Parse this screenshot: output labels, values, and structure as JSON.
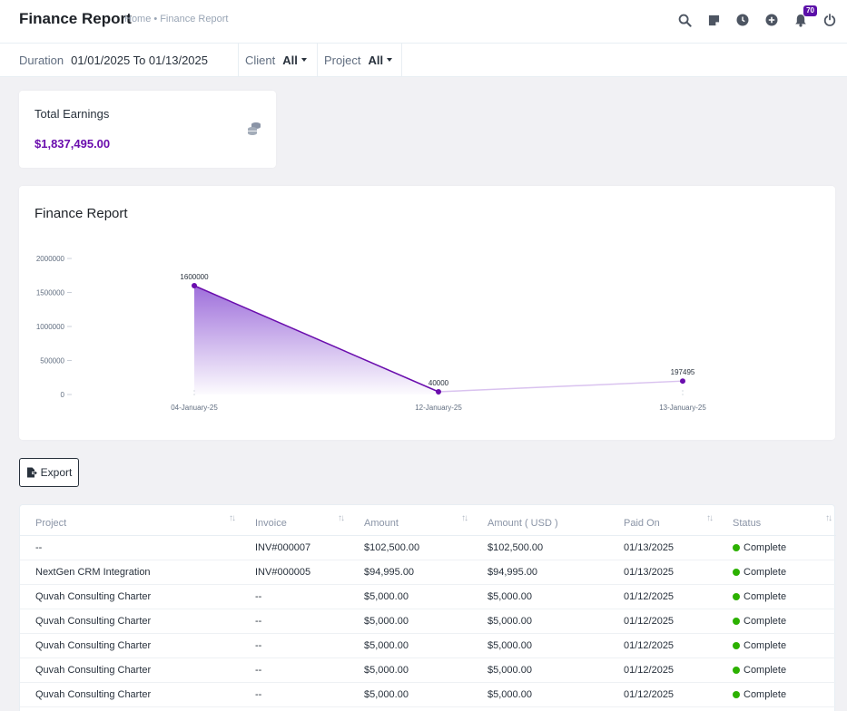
{
  "header": {
    "title": "Finance Report",
    "breadcrumb": {
      "home": "Home",
      "current": "Finance Report"
    },
    "notification_count": "70",
    "icons": [
      "search-icon",
      "sticky-note-icon",
      "clock-icon",
      "plus-circle-icon",
      "bell-icon",
      "power-icon"
    ]
  },
  "filters": {
    "duration_label": "Duration",
    "duration_value": "01/01/2025 To 01/13/2025",
    "client_label": "Client",
    "client_value": "All",
    "project_label": "Project",
    "project_value": "All"
  },
  "earnings": {
    "title": "Total Earnings",
    "value": "$1,837,495.00"
  },
  "chart_card": {
    "title": "Finance Report"
  },
  "chart_data": {
    "type": "area",
    "title": "Finance Report",
    "categories": [
      "04-January-25",
      "12-January-25",
      "13-January-25"
    ],
    "values": [
      1600000,
      40000,
      197495
    ],
    "data_labels": [
      "1600000",
      "40000",
      "197495"
    ],
    "ylim": [
      0,
      2000000
    ],
    "yticks": [
      0,
      500000,
      1000000,
      1500000,
      2000000
    ],
    "ytick_labels": [
      "0",
      "500000",
      "1000000",
      "1500000",
      "2000000"
    ],
    "xlabel": "",
    "ylabel": "",
    "color": "#6a0dad"
  },
  "export_label": "Export",
  "table": {
    "columns": [
      "Project",
      "Invoice",
      "Amount",
      "Amount ( USD )",
      "Paid On",
      "Status"
    ],
    "rows": [
      [
        "--",
        "INV#000007",
        "$102,500.00",
        "$102,500.00",
        "01/13/2025",
        "Complete"
      ],
      [
        "NextGen CRM Integration",
        "INV#000005",
        "$94,995.00",
        "$94,995.00",
        "01/13/2025",
        "Complete"
      ],
      [
        "Quvah Consulting Charter",
        "--",
        "$5,000.00",
        "$5,000.00",
        "01/12/2025",
        "Complete"
      ],
      [
        "Quvah Consulting Charter",
        "--",
        "$5,000.00",
        "$5,000.00",
        "01/12/2025",
        "Complete"
      ],
      [
        "Quvah Consulting Charter",
        "--",
        "$5,000.00",
        "$5,000.00",
        "01/12/2025",
        "Complete"
      ],
      [
        "Quvah Consulting Charter",
        "--",
        "$5,000.00",
        "$5,000.00",
        "01/12/2025",
        "Complete"
      ],
      [
        "Quvah Consulting Charter",
        "--",
        "$5,000.00",
        "$5,000.00",
        "01/12/2025",
        "Complete"
      ]
    ]
  }
}
